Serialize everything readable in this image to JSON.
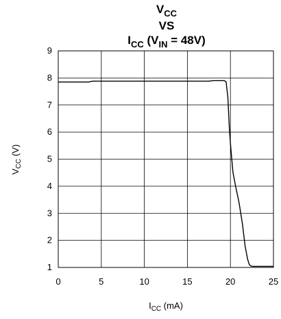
{
  "chart_data": {
    "type": "line",
    "title": {
      "line1": {
        "main": "V",
        "sub": "CC"
      },
      "line2": "VS",
      "line3": {
        "a": "I",
        "a_sub": "CC",
        "b": " (V",
        "b_sub": "IN",
        "c": " = 48V)"
      }
    },
    "xlabel": {
      "main": "I",
      "sub": "CC",
      "rest": " (mA)"
    },
    "ylabel": {
      "main": "V",
      "sub": "CC",
      "rest": " (V)"
    },
    "xlim": [
      0,
      25
    ],
    "ylim": [
      1,
      9
    ],
    "xticks": [
      0,
      5,
      10,
      15,
      20,
      25
    ],
    "yticks": [
      1,
      2,
      3,
      4,
      5,
      6,
      7,
      8,
      9
    ],
    "grid": true,
    "series": [
      {
        "x": [
          0,
          3.5,
          4.0,
          17.5,
          18.0,
          19.3,
          19.5,
          19.7,
          19.9,
          20.1,
          20.3,
          20.6,
          21.0,
          21.4,
          21.7,
          22.0,
          22.2,
          22.4,
          22.6,
          25.0
        ],
        "y": [
          7.85,
          7.85,
          7.88,
          7.88,
          7.9,
          7.9,
          7.85,
          7.3,
          6.0,
          5.2,
          4.5,
          4.0,
          3.4,
          2.6,
          1.8,
          1.3,
          1.1,
          1.05,
          1.04,
          1.04
        ]
      }
    ],
    "colors": {
      "line": "#000000",
      "grid": "#000000",
      "background": "#ffffff"
    }
  }
}
